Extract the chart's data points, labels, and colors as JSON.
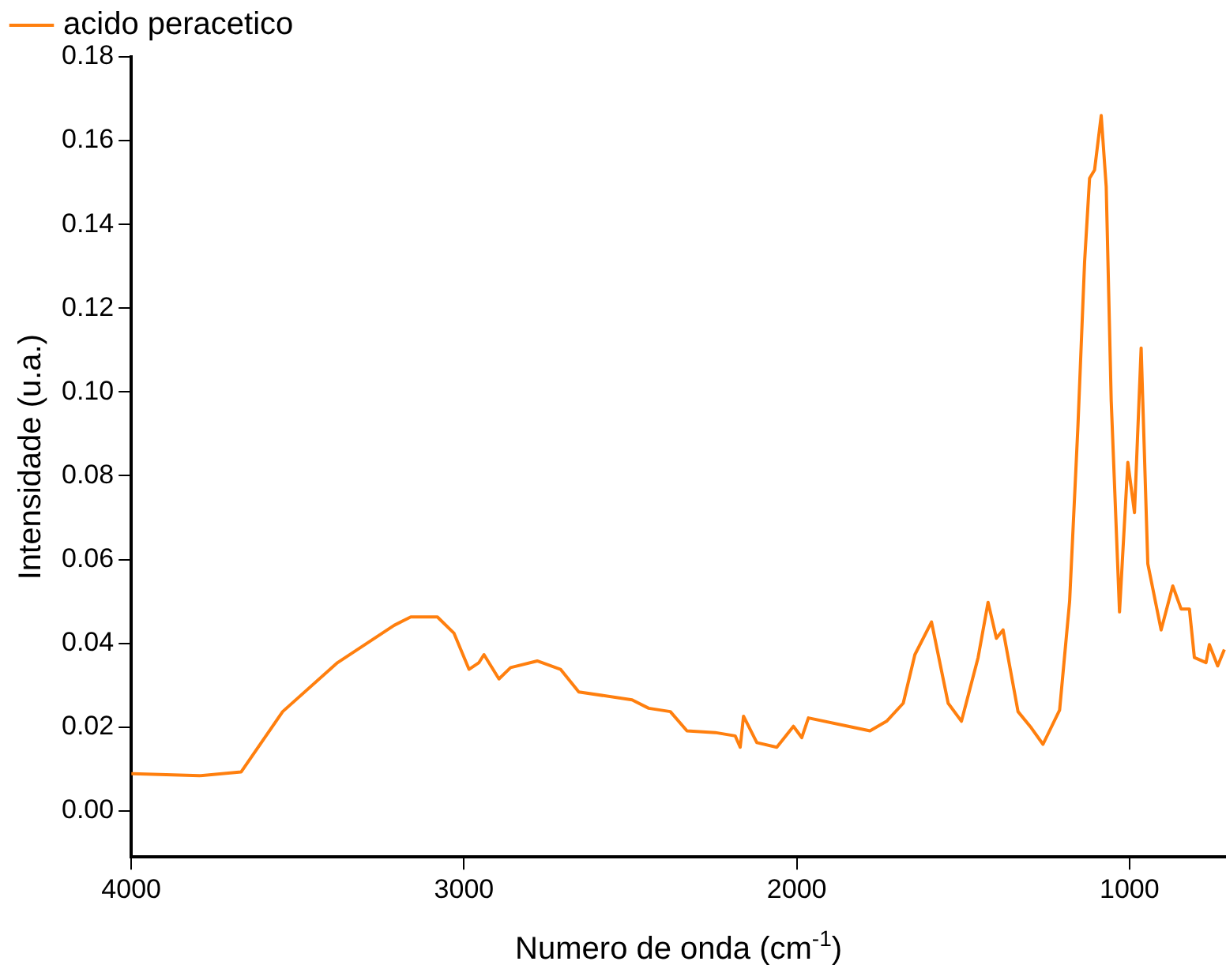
{
  "chart_data": {
    "type": "line",
    "xlabel": "Numero de onda (cm$^{-1}$)",
    "ylabel": "Intensidade (u.a.)",
    "xlim": [
      4000,
      710
    ],
    "xticks": [
      4000,
      3000,
      2000,
      1000
    ],
    "ylim": [
      -0.011,
      0.18
    ],
    "yticks": [
      {
        "value": 0,
        "label": "0.00"
      },
      {
        "value": 0.02,
        "label": "0.02"
      },
      {
        "value": 0.04,
        "label": "0.04"
      },
      {
        "value": 0.06,
        "label": "0.06"
      },
      {
        "value": 0.08,
        "label": "0.08"
      },
      {
        "value": 0.1,
        "label": "0.10"
      },
      {
        "value": 0.12,
        "label": "0.12"
      },
      {
        "value": 0.14,
        "label": "0.14"
      },
      {
        "value": 0.16,
        "label": "0.16"
      },
      {
        "value": 0.18,
        "label": "0.18"
      }
    ],
    "grid": false,
    "legend": "top left",
    "marker": "none",
    "line_style": "solid",
    "series": [
      {
        "name": "acido peracetico",
        "color": "#ff7f0e",
        "x": [
          4000,
          3995,
          3795,
          3670,
          3545,
          3380,
          3210,
          3160,
          3080,
          3030,
          2985,
          2955,
          2940,
          2895,
          2860,
          2780,
          2710,
          2655,
          2495,
          2445,
          2380,
          2330,
          2245,
          2185,
          2170,
          2160,
          2120,
          2060,
          2010,
          1985,
          1965,
          1845,
          1780,
          1730,
          1680,
          1645,
          1595,
          1545,
          1505,
          1455,
          1425,
          1400,
          1380,
          1335,
          1295,
          1260,
          1210,
          1180,
          1155,
          1135,
          1120,
          1105,
          1085,
          1070,
          1055,
          1030,
          1005,
          985,
          965,
          945,
          905,
          870,
          845,
          820,
          805,
          770,
          760,
          735,
          715
        ],
        "values": [
          0.0089,
          0.0089,
          0.0084,
          0.0093,
          0.0237,
          0.0354,
          0.0443,
          0.0463,
          0.0463,
          0.0424,
          0.0338,
          0.0354,
          0.0373,
          0.0315,
          0.0342,
          0.0358,
          0.0338,
          0.0284,
          0.0265,
          0.0245,
          0.0237,
          0.0191,
          0.0187,
          0.0179,
          0.0152,
          0.0226,
          0.0163,
          0.0152,
          0.0202,
          0.0175,
          0.0222,
          0.0202,
          0.0191,
          0.0214,
          0.0257,
          0.0373,
          0.0451,
          0.0257,
          0.0214,
          0.0366,
          0.0498,
          0.0412,
          0.0432,
          0.0237,
          0.0198,
          0.0159,
          0.0241,
          0.05,
          0.0918,
          0.131,
          0.151,
          0.153,
          0.166,
          0.149,
          0.098,
          0.0475,
          0.0832,
          0.0712,
          0.1105,
          0.059,
          0.0432,
          0.0537,
          0.0482,
          0.0482,
          0.0366,
          0.0354,
          0.0397,
          0.0346,
          0.0385
        ]
      }
    ]
  }
}
